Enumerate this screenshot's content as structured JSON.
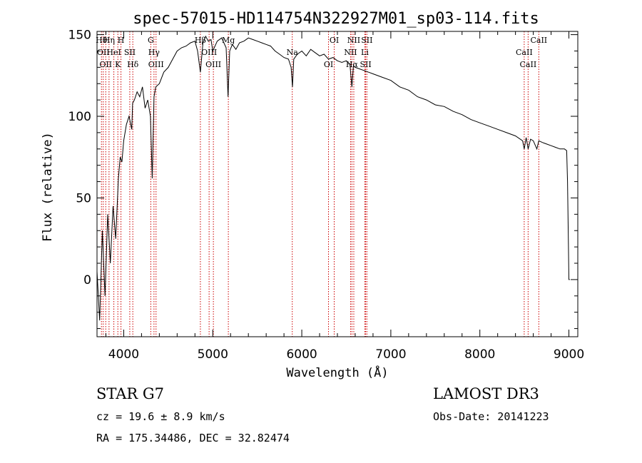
{
  "chart_data": {
    "type": "line",
    "title": "spec-57015-HD114754N322927M01_sp03-114.fits",
    "xlabel": "Wavelength (Å)",
    "ylabel": "Flux (relative)",
    "xlim": [
      3700,
      9100
    ],
    "ylim": [
      -35,
      152
    ],
    "xticks": [
      4000,
      5000,
      6000,
      7000,
      8000,
      9000
    ],
    "yticks": [
      0,
      50,
      100,
      150
    ],
    "grid": false,
    "series": [
      {
        "color": "#000000",
        "x": [
          3700,
          3730,
          3760,
          3790,
          3820,
          3850,
          3880,
          3910,
          3940,
          3960,
          3980,
          4000,
          4030,
          4060,
          4090,
          4100,
          4120,
          4150,
          4180,
          4210,
          4240,
          4270,
          4300,
          4320,
          4340,
          4360,
          4400,
          4450,
          4500,
          4550,
          4600,
          4650,
          4700,
          4750,
          4800,
          4830,
          4861,
          4890,
          4920,
          4950,
          4980,
          5000,
          5050,
          5100,
          5150,
          5172,
          5190,
          5220,
          5260,
          5300,
          5350,
          5400,
          5450,
          5500,
          5550,
          5600,
          5650,
          5700,
          5750,
          5800,
          5850,
          5880,
          5895,
          5910,
          5950,
          6000,
          6050,
          6100,
          6150,
          6200,
          6250,
          6300,
          6350,
          6400,
          6450,
          6500,
          6540,
          6563,
          6580,
          6600,
          6650,
          6700,
          6750,
          6800,
          6900,
          7000,
          7100,
          7200,
          7300,
          7400,
          7500,
          7600,
          7700,
          7800,
          7900,
          8000,
          8100,
          8200,
          8300,
          8400,
          8480,
          8498,
          8520,
          8542,
          8570,
          8600,
          8640,
          8662,
          8700,
          8750,
          8800,
          8850,
          8900,
          8950,
          8975,
          8985,
          8995,
          9000,
          9010
        ],
        "y": [
          5,
          -25,
          30,
          -10,
          40,
          10,
          45,
          25,
          62,
          75,
          72,
          85,
          95,
          100,
          92,
          108,
          110,
          115,
          112,
          118,
          105,
          110,
          100,
          62,
          112,
          118,
          120,
          127,
          130,
          135,
          140,
          142,
          143,
          145,
          146,
          140,
          127,
          145,
          149,
          146,
          147,
          140,
          146,
          148,
          142,
          112,
          140,
          144,
          141,
          145,
          146,
          148,
          147,
          146,
          145,
          144,
          143,
          140,
          138,
          136,
          135,
          130,
          118,
          135,
          138,
          140,
          137,
          141,
          139,
          137,
          138,
          135,
          136,
          134,
          133,
          134,
          132,
          118,
          131,
          130,
          129,
          128,
          127,
          126,
          124,
          122,
          118,
          116,
          112,
          110,
          107,
          106,
          103,
          101,
          98,
          96,
          94,
          92,
          90,
          88,
          85,
          80,
          87,
          80,
          86,
          85,
          80,
          85,
          84,
          83,
          82,
          81,
          80,
          80,
          79,
          60,
          20,
          0,
          0
        ]
      }
    ],
    "line_markers": [
      {
        "wl": 3750,
        "label": "Hθ"
      },
      {
        "wl": 3770,
        "label": "OII"
      },
      {
        "wl": 3798,
        "label": "OII"
      },
      {
        "wl": 3835,
        "label": "Hη"
      },
      {
        "wl": 3889,
        "label": "HeI"
      },
      {
        "wl": 3934,
        "label": "K"
      },
      {
        "wl": 3969,
        "label": "H"
      },
      {
        "wl": 4068,
        "label": "SII"
      },
      {
        "wl": 4102,
        "label": "Hδ"
      },
      {
        "wl": 4304,
        "label": "G"
      },
      {
        "wl": 4340,
        "label": "Hγ"
      },
      {
        "wl": 4363,
        "label": "OIII"
      },
      {
        "wl": 4861,
        "label": "Hβ"
      },
      {
        "wl": 4959,
        "label": "OIII"
      },
      {
        "wl": 5007,
        "label": "OIII"
      },
      {
        "wl": 5175,
        "label": "Mg"
      },
      {
        "wl": 5893,
        "label": "Na"
      },
      {
        "wl": 6300,
        "label": "OI"
      },
      {
        "wl": 6364,
        "label": "OI"
      },
      {
        "wl": 6548,
        "label": "NII"
      },
      {
        "wl": 6563,
        "label": "Hα"
      },
      {
        "wl": 6584,
        "label": "NII"
      },
      {
        "wl": 6708,
        "label": "Li"
      },
      {
        "wl": 6717,
        "label": "SII"
      },
      {
        "wl": 6731,
        "label": "SII"
      },
      {
        "wl": 8498,
        "label": "CaII"
      },
      {
        "wl": 8542,
        "label": "CaII"
      },
      {
        "wl": 8662,
        "label": "CaII"
      }
    ],
    "marker_color": "#cc0000"
  },
  "info": {
    "star_type": "STAR    G7",
    "survey": "LAMOST DR3",
    "cz": "cz = 19.6 ± 8.9 km/s",
    "obs_date": "Obs-Date: 20141223",
    "coords": "RA = 175.34486, DEC =  32.82474"
  }
}
